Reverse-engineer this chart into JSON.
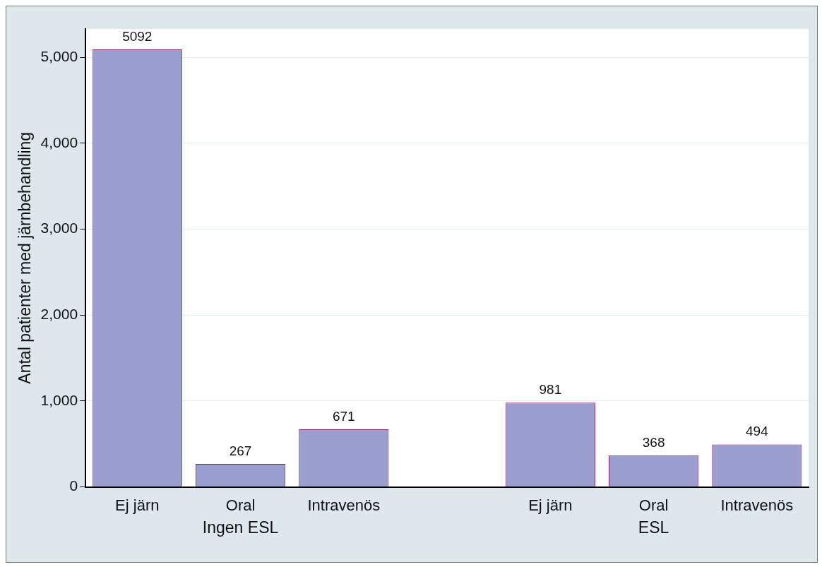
{
  "chart_data": {
    "type": "bar",
    "ylabel": "Antal patienter med järnbehandling",
    "categories": [
      "Ej järn",
      "Oral",
      "Intravenös",
      null,
      "Ej järn",
      "Oral",
      "Intravenös"
    ],
    "values": [
      5092,
      267,
      671,
      null,
      981,
      368,
      494
    ],
    "color": "#9b9fd0",
    "ylim": [
      0,
      5330
    ],
    "yticks": [
      0,
      {
        "value": 1000,
        "label": "1,000"
      },
      {
        "value": 2000,
        "label": "2,000"
      },
      {
        "value": 3000,
        "label": "3,000"
      },
      {
        "value": 4000,
        "label": "4,000"
      },
      {
        "value": 5000,
        "label": "5,000"
      }
    ],
    "grid": "y",
    "data_labels": true,
    "legend": false,
    "annotations": [
      "Ingen ESL",
      "ESL"
    ]
  }
}
